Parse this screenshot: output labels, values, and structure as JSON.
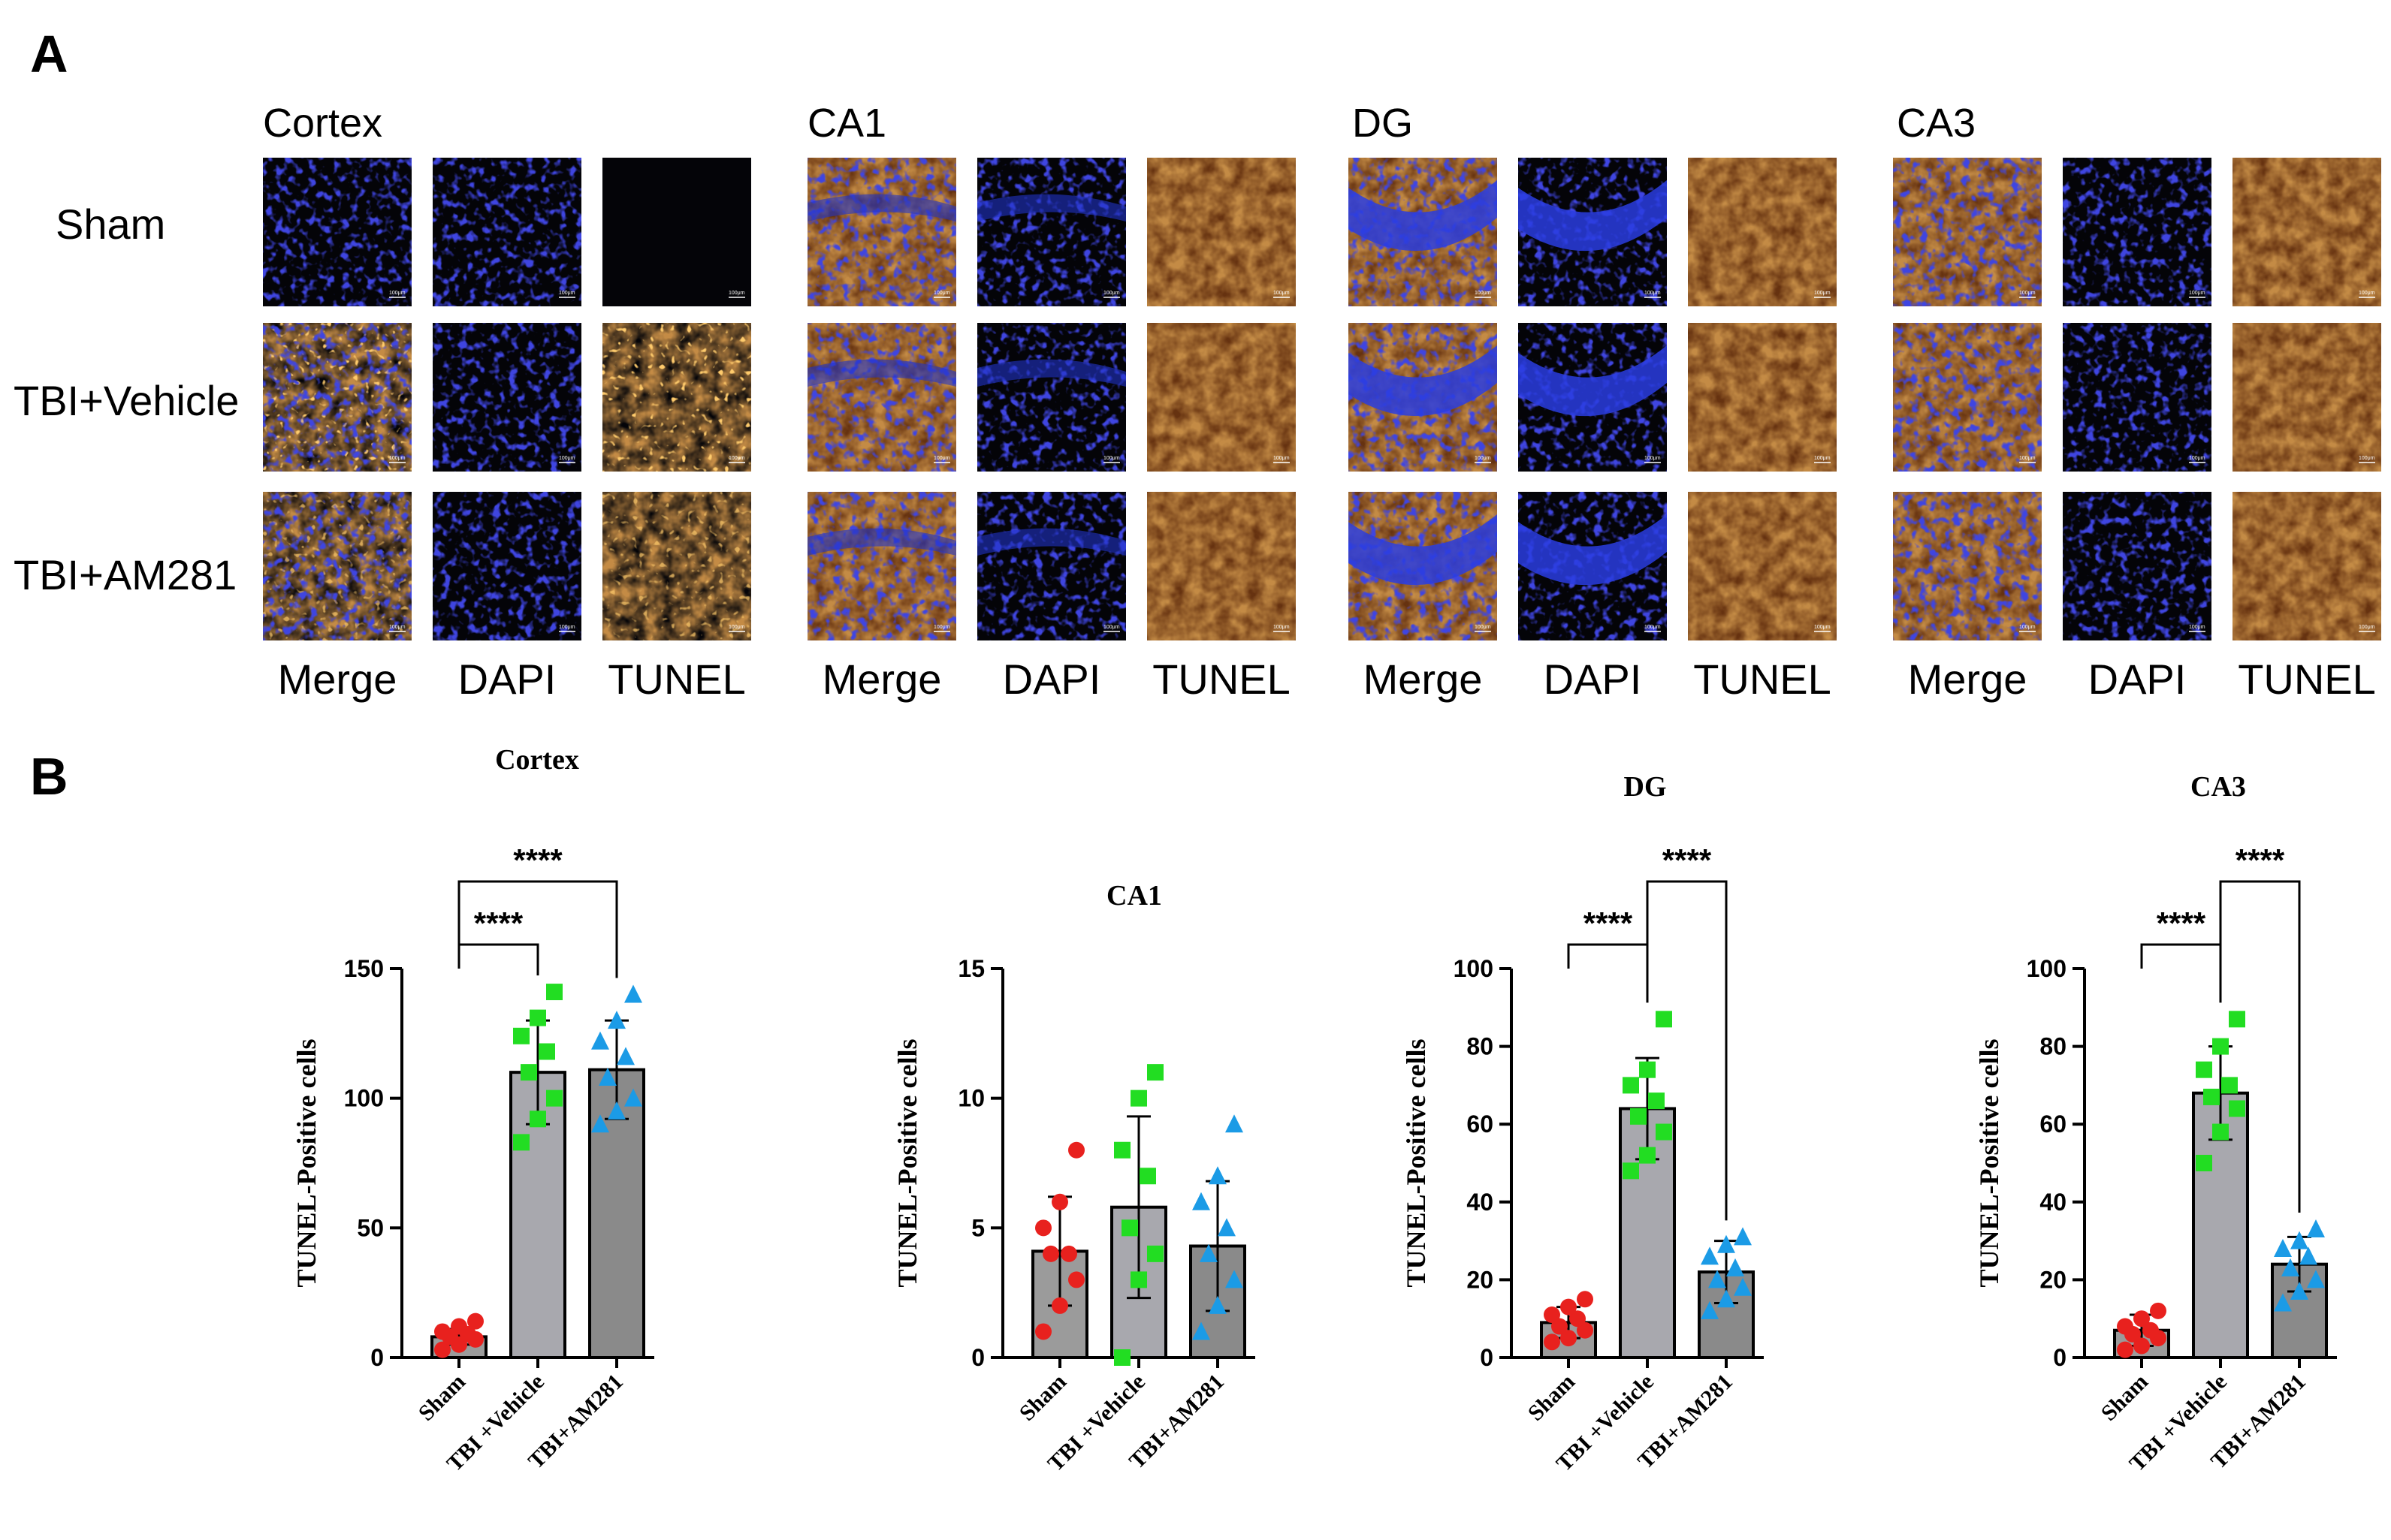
{
  "panel_a": {
    "letter": "A",
    "rows": [
      "Sham",
      "TBI+Vehicle",
      "TBI+AM281"
    ],
    "regions": [
      {
        "title": "Cortex",
        "columns": [
          "Merge",
          "DAPI",
          "TUNEL"
        ]
      },
      {
        "title": "CA1",
        "columns": [
          "Merge",
          "DAPI",
          "TUNEL"
        ]
      },
      {
        "title": "DG",
        "columns": [
          "Merge",
          "DAPI",
          "TUNEL"
        ]
      },
      {
        "title": "CA3",
        "columns": [
          "Merge",
          "DAPI",
          "TUNEL"
        ]
      }
    ],
    "scale_bar_label": "100μm",
    "colors": {
      "dapi": "#1a1aa8",
      "tunel": "#b85a18",
      "background": "#040408"
    }
  },
  "panel_b": {
    "letter": "B"
  },
  "chart_data": [
    {
      "type": "bar",
      "title": "Cortex",
      "ylabel": "TUNEL-Positive cells",
      "categories": [
        "Sham",
        "TBI +Vehicle",
        "TBI+AM281"
      ],
      "ylim": [
        0,
        150
      ],
      "yticks": [
        0,
        50,
        100,
        150
      ],
      "values": [
        8,
        110,
        111
      ],
      "errors": [
        3,
        20,
        19
      ],
      "points": [
        [
          3,
          5,
          7,
          8,
          9,
          10,
          12,
          14
        ],
        [
          83,
          92,
          100,
          110,
          118,
          124,
          131,
          141
        ],
        [
          90,
          95,
          100,
          108,
          116,
          122,
          130,
          140
        ]
      ],
      "significance": [
        {
          "from": 0,
          "to": 1,
          "label": "****"
        },
        {
          "from": 0,
          "to": 2,
          "label": "****"
        }
      ]
    },
    {
      "type": "bar",
      "title": "CA1",
      "ylabel": "TUNEL-Positive cells",
      "categories": [
        "Sham",
        "TBI +Vehicle",
        "TBI+AM281"
      ],
      "ylim": [
        0,
        15
      ],
      "yticks": [
        0,
        5,
        10,
        15
      ],
      "values": [
        4.1,
        5.8,
        4.3
      ],
      "errors": [
        2.1,
        3.5,
        2.5
      ],
      "points": [
        [
          1,
          2,
          3,
          4,
          4,
          5,
          6,
          8
        ],
        [
          0,
          3,
          4,
          5,
          7,
          8,
          10,
          11
        ],
        [
          1,
          2,
          3,
          4,
          5,
          6,
          7,
          9
        ]
      ],
      "significance": []
    },
    {
      "type": "bar",
      "title": "DG",
      "ylabel": "TUNEL-Positive cells",
      "categories": [
        "Sham",
        "TBI +Vehicle",
        "TBI+AM281"
      ],
      "ylim": [
        0,
        100
      ],
      "yticks": [
        0,
        20,
        40,
        60,
        80,
        100
      ],
      "values": [
        9,
        64,
        22
      ],
      "errors": [
        4,
        13,
        8
      ],
      "points": [
        [
          4,
          5,
          7,
          8,
          10,
          11,
          13,
          15
        ],
        [
          48,
          52,
          58,
          62,
          66,
          70,
          74,
          87
        ],
        [
          12,
          15,
          18,
          20,
          23,
          26,
          29,
          31
        ]
      ],
      "significance": [
        {
          "from": 0,
          "to": 1,
          "label": "****"
        },
        {
          "from": 1,
          "to": 2,
          "label": "****"
        }
      ]
    },
    {
      "type": "bar",
      "title": "CA3",
      "ylabel": "TUNEL-Positive cells",
      "categories": [
        "Sham",
        "TBI +Vehicle",
        "TBI+AM281"
      ],
      "ylim": [
        0,
        100
      ],
      "yticks": [
        0,
        20,
        40,
        60,
        80,
        100
      ],
      "values": [
        7,
        68,
        24
      ],
      "errors": [
        4,
        12,
        7
      ],
      "points": [
        [
          2,
          3,
          5,
          6,
          7,
          8,
          10,
          12
        ],
        [
          50,
          58,
          64,
          67,
          70,
          74,
          80,
          87
        ],
        [
          14,
          17,
          20,
          23,
          26,
          28,
          30,
          33
        ]
      ],
      "significance": [
        {
          "from": 0,
          "to": 1,
          "label": "****"
        },
        {
          "from": 1,
          "to": 2,
          "label": "****"
        }
      ]
    }
  ],
  "style": {
    "bar_colors": [
      "#9b9b9b",
      "#a8a8ae",
      "#8a8a8a"
    ],
    "point_colors": [
      "#e8211e",
      "#22dd22",
      "#1b9be6"
    ],
    "point_shapes": [
      "circle",
      "square",
      "triangle"
    ]
  }
}
